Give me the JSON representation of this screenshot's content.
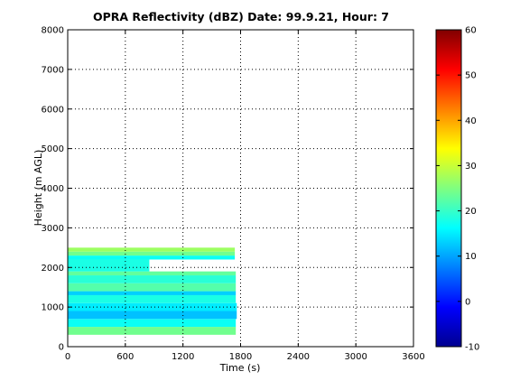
{
  "chart_data": {
    "type": "heatmap",
    "title": "OPRA Reflectivity (dBZ)  Date: 99.9.21, Hour: 7",
    "xlabel": "Time (s)",
    "ylabel": "Height (m AGL)",
    "xlim": [
      0,
      3600
    ],
    "ylim": [
      0,
      8000
    ],
    "x_ticks": [
      "0",
      "600",
      "1200",
      "1800",
      "2400",
      "3000",
      "3600"
    ],
    "y_ticks": [
      "0",
      "1000",
      "2000",
      "3000",
      "4000",
      "5000",
      "6000",
      "7000",
      "8000"
    ],
    "grid": true,
    "colormap": "jet",
    "colorbar": {
      "clim": [
        -10,
        60
      ],
      "ticks": [
        "-10",
        "0",
        "10",
        "20",
        "30",
        "40",
        "50",
        "60"
      ]
    },
    "echo_layers": [
      {
        "t_start": 0,
        "t_end": 1750,
        "h_bottom": 300,
        "h_top": 500,
        "dbz": 24
      },
      {
        "t_start": 0,
        "t_end": 1750,
        "h_bottom": 500,
        "h_top": 700,
        "dbz": 17
      },
      {
        "t_start": 0,
        "t_end": 1760,
        "h_bottom": 700,
        "h_top": 900,
        "dbz": 12
      },
      {
        "t_start": 0,
        "t_end": 1760,
        "h_bottom": 900,
        "h_top": 1100,
        "dbz": 15
      },
      {
        "t_start": 0,
        "t_end": 1750,
        "h_bottom": 1100,
        "h_top": 1300,
        "dbz": 18
      },
      {
        "t_start": 0,
        "t_end": 1750,
        "h_bottom": 1300,
        "h_top": 1400,
        "dbz": 13
      },
      {
        "t_start": 0,
        "t_end": 1750,
        "h_bottom": 1400,
        "h_top": 1600,
        "dbz": 22
      },
      {
        "t_start": 0,
        "t_end": 1750,
        "h_bottom": 1600,
        "h_top": 1800,
        "dbz": 19
      },
      {
        "t_start": 0,
        "t_end": 1750,
        "h_bottom": 1800,
        "h_top": 1900,
        "dbz": 23
      },
      {
        "t_start": 0,
        "t_end": 850,
        "h_bottom": 1900,
        "h_top": 2200,
        "dbz": 18
      },
      {
        "t_start": 0,
        "t_end": 1740,
        "h_bottom": 2200,
        "h_top": 2300,
        "dbz": 17
      },
      {
        "t_start": 0,
        "t_end": 1740,
        "h_bottom": 2300,
        "h_top": 2400,
        "dbz": 24
      },
      {
        "t_start": 0,
        "t_end": 1740,
        "h_bottom": 2400,
        "h_top": 2500,
        "dbz": 27
      }
    ]
  }
}
